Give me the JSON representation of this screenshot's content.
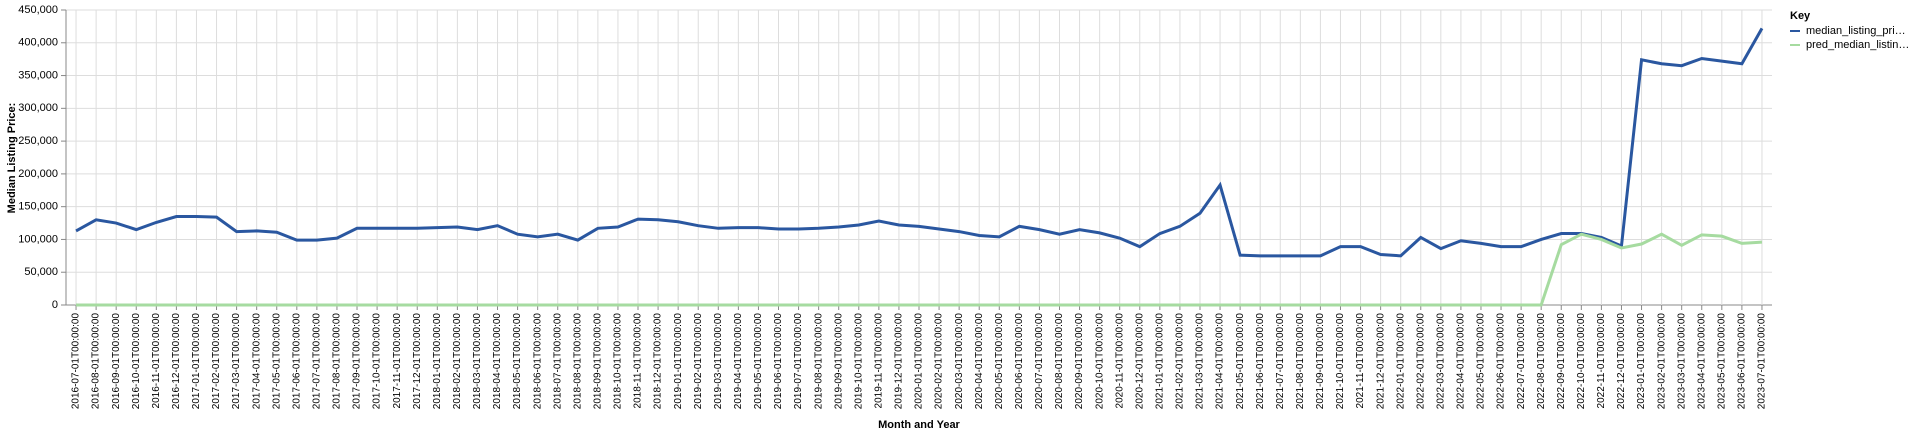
{
  "chart_data": {
    "type": "line",
    "x_label": "Month and Year",
    "y_label": "Median Listing Price:",
    "legend_title": "Key",
    "legend": "right",
    "grid": true,
    "categories": [
      "2016-07-01T00:00:00",
      "2016-08-01T00:00:00",
      "2016-09-01T00:00:00",
      "2016-10-01T00:00:00",
      "2016-11-01T00:00:00",
      "2016-12-01T00:00:00",
      "2017-01-01T00:00:00",
      "2017-02-01T00:00:00",
      "2017-03-01T00:00:00",
      "2017-04-01T00:00:00",
      "2017-05-01T00:00:00",
      "2017-06-01T00:00:00",
      "2017-07-01T00:00:00",
      "2017-08-01T00:00:00",
      "2017-09-01T00:00:00",
      "2017-10-01T00:00:00",
      "2017-11-01T00:00:00",
      "2017-12-01T00:00:00",
      "2018-01-01T00:00:00",
      "2018-02-01T00:00:00",
      "2018-03-01T00:00:00",
      "2018-04-01T00:00:00",
      "2018-05-01T00:00:00",
      "2018-06-01T00:00:00",
      "2018-07-01T00:00:00",
      "2018-08-01T00:00:00",
      "2018-09-01T00:00:00",
      "2018-10-01T00:00:00",
      "2018-11-01T00:00:00",
      "2018-12-01T00:00:00",
      "2019-01-01T00:00:00",
      "2019-02-01T00:00:00",
      "2019-03-01T00:00:00",
      "2019-04-01T00:00:00",
      "2019-05-01T00:00:00",
      "2019-06-01T00:00:00",
      "2019-07-01T00:00:00",
      "2019-08-01T00:00:00",
      "2019-09-01T00:00:00",
      "2019-10-01T00:00:00",
      "2019-11-01T00:00:00",
      "2019-12-01T00:00:00",
      "2020-01-01T00:00:00",
      "2020-02-01T00:00:00",
      "2020-03-01T00:00:00",
      "2020-04-01T00:00:00",
      "2020-05-01T00:00:00",
      "2020-06-01T00:00:00",
      "2020-07-01T00:00:00",
      "2020-08-01T00:00:00",
      "2020-09-01T00:00:00",
      "2020-10-01T00:00:00",
      "2020-11-01T00:00:00",
      "2020-12-01T00:00:00",
      "2021-01-01T00:00:00",
      "2021-02-01T00:00:00",
      "2021-03-01T00:00:00",
      "2021-04-01T00:00:00",
      "2021-05-01T00:00:00",
      "2021-06-01T00:00:00",
      "2021-07-01T00:00:00",
      "2021-08-01T00:00:00",
      "2021-09-01T00:00:00",
      "2021-10-01T00:00:00",
      "2021-11-01T00:00:00",
      "2021-12-01T00:00:00",
      "2022-01-01T00:00:00",
      "2022-02-01T00:00:00",
      "2022-03-01T00:00:00",
      "2022-04-01T00:00:00",
      "2022-05-01T00:00:00",
      "2022-06-01T00:00:00",
      "2022-07-01T00:00:00",
      "2022-08-01T00:00:00",
      "2022-09-01T00:00:00",
      "2022-10-01T00:00:00",
      "2022-11-01T00:00:00",
      "2022-12-01T00:00:00",
      "2023-01-01T00:00:00",
      "2023-02-01T00:00:00",
      "2023-03-01T00:00:00",
      "2023-04-01T00:00:00",
      "2023-05-01T00:00:00",
      "2023-06-01T00:00:00",
      "2023-07-01T00:00:00"
    ],
    "series": [
      {
        "name": "median_listing_pri…",
        "color": "#2a57a0",
        "values": [
          113000,
          130000,
          125000,
          115000,
          126000,
          135000,
          135000,
          134000,
          112000,
          113000,
          111000,
          99000,
          99000,
          102000,
          117000,
          117000,
          117000,
          117000,
          118000,
          119000,
          115000,
          121000,
          108000,
          104000,
          108000,
          99000,
          117000,
          119000,
          131000,
          130000,
          127000,
          121000,
          117000,
          118000,
          118000,
          116000,
          116000,
          117000,
          119000,
          122000,
          128000,
          122000,
          120000,
          116000,
          112000,
          106000,
          104000,
          120000,
          115000,
          108000,
          115000,
          110000,
          102000,
          89000,
          109000,
          120000,
          140000,
          183000,
          76000,
          75000,
          75000,
          75000,
          75000,
          89000,
          89000,
          77000,
          75000,
          103000,
          86000,
          98000,
          94000,
          89000,
          89000,
          100000,
          109000,
          109000,
          103000,
          90000,
          374000,
          368000,
          365000,
          376000,
          372000,
          368000,
          422000
        ]
      },
      {
        "name": "pred_median_listin…",
        "color": "#a6dba0",
        "values": [
          0,
          0,
          0,
          0,
          0,
          0,
          0,
          0,
          0,
          0,
          0,
          0,
          0,
          0,
          0,
          0,
          0,
          0,
          0,
          0,
          0,
          0,
          0,
          0,
          0,
          0,
          0,
          0,
          0,
          0,
          0,
          0,
          0,
          0,
          0,
          0,
          0,
          0,
          0,
          0,
          0,
          0,
          0,
          0,
          0,
          0,
          0,
          0,
          0,
          0,
          0,
          0,
          0,
          0,
          0,
          0,
          0,
          0,
          0,
          0,
          0,
          0,
          0,
          0,
          0,
          0,
          0,
          0,
          0,
          0,
          0,
          0,
          0,
          0,
          92000,
          108000,
          100000,
          87000,
          93000,
          108000,
          91000,
          107000,
          105000,
          94000,
          96000
        ]
      }
    ],
    "ylim": [
      0,
      450000
    ],
    "yticks": [
      0,
      {
        "value": 50000,
        "label": "50,000"
      },
      {
        "value": 100000,
        "label": "100,000"
      },
      {
        "value": 150000,
        "label": "150,000"
      },
      {
        "value": 200000,
        "label": "200,000"
      },
      {
        "value": 250000,
        "label": "250,000"
      },
      {
        "value": 300000,
        "label": "300,000"
      },
      {
        "value": 350000,
        "label": "350,000"
      },
      {
        "value": 400000,
        "label": "400,000"
      },
      {
        "value": 450000,
        "label": "450,000"
      }
    ]
  }
}
